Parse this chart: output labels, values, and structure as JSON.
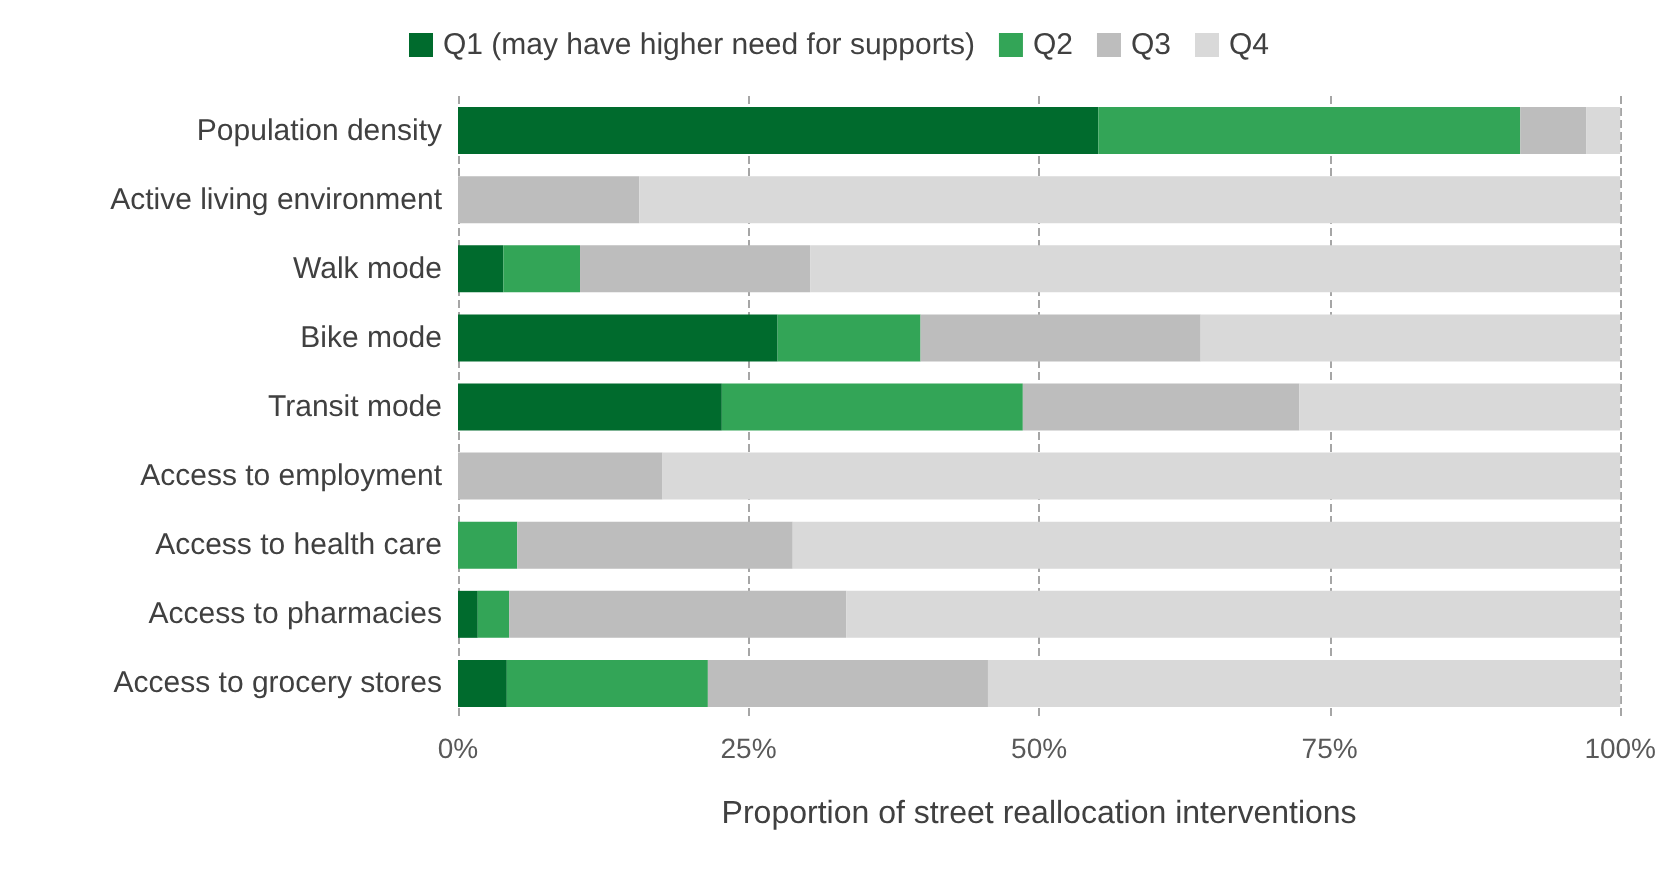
{
  "chart_data": {
    "type": "bar",
    "orientation": "horizontal",
    "stacked": true,
    "xlabel": "Proportion of street reallocation interventions",
    "categories": [
      "Population density",
      "Active living environment",
      "Walk mode",
      "Bike mode",
      "Transit mode",
      "Access to employment",
      "Access to health care",
      "Access to pharmacies",
      "Access to grocery stores"
    ],
    "series": [
      {
        "name": "Q1 (may have higher need for supports)",
        "color": "#006b2d",
        "values": [
          55.1,
          0,
          3.9,
          27.5,
          22.7,
          0,
          0,
          1.7,
          4.2
        ]
      },
      {
        "name": "Q2",
        "color": "#33a557",
        "values": [
          36.3,
          0,
          6.6,
          12.3,
          25.9,
          0,
          5.1,
          2.7,
          17.3
        ]
      },
      {
        "name": "Q3",
        "color": "#bdbdbd",
        "values": [
          5.7,
          15.6,
          19.8,
          24.1,
          23.8,
          17.6,
          23.7,
          29.0,
          24.1
        ]
      },
      {
        "name": "Q4",
        "color": "#d9d9d9",
        "values": [
          2.9,
          84.4,
          69.7,
          36.1,
          27.6,
          82.4,
          71.2,
          66.6,
          54.4
        ]
      }
    ],
    "xlim": [
      0,
      100
    ],
    "xticks": [
      {
        "value": 0,
        "label": "0%"
      },
      {
        "value": 25,
        "label": "25%"
      },
      {
        "value": 50,
        "label": "50%"
      },
      {
        "value": 75,
        "label": "75%"
      },
      {
        "value": 100,
        "label": "100%"
      }
    ],
    "grid": "x",
    "legend": "top"
  }
}
